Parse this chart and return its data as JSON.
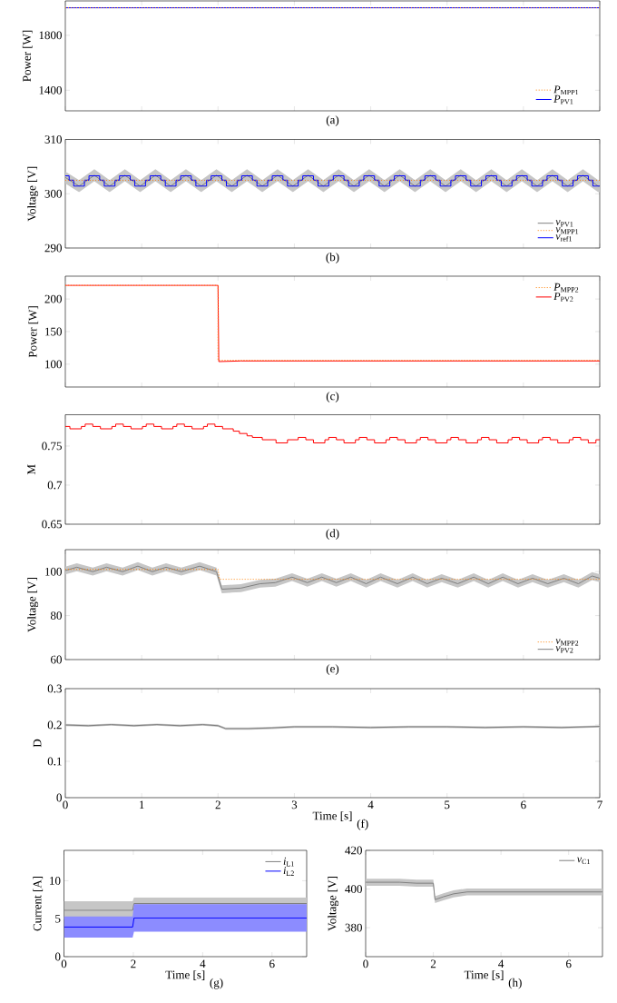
{
  "chart_data": [
    {
      "type": "line",
      "ylabel": "Power [W]",
      "xlim": [
        0,
        7
      ],
      "ylim": [
        1250,
        2050
      ],
      "xticks": [
        0,
        1,
        2,
        3,
        4,
        5,
        6,
        7
      ],
      "yticks": [
        1400,
        1800
      ],
      "tick_labels": "y",
      "legend": "bottom right",
      "annotations": [
        "(a)"
      ],
      "series": [
        {
          "name": "*P*$_{MPP1}$",
          "color": "#ff8000",
          "line_style": "dotted",
          "x": [
            0,
            7
          ],
          "values": [
            2000,
            2000
          ]
        },
        {
          "name": "*P*$_{PV1}$",
          "color": "#0000ff",
          "x": [
            0,
            7
          ],
          "values": [
            2000,
            2000
          ]
        }
      ]
    },
    {
      "type": "line",
      "ylabel": "Voltage [V]",
      "xlim": [
        0,
        7
      ],
      "ylim": [
        290,
        310
      ],
      "xticks": [
        0,
        1,
        2,
        3,
        4,
        5,
        6,
        7
      ],
      "yticks": [
        290,
        300,
        310
      ],
      "tick_labels": "y",
      "legend": "bottom right",
      "annotations": [
        "(b)"
      ],
      "series": [
        {
          "name": "*v*$_{PV1}$",
          "color": "#808080",
          "x": [
            0,
            0.18,
            0.38,
            0.58,
            0.78,
            0.98,
            1.18,
            1.38,
            1.58,
            1.78,
            1.98,
            2.18,
            2.38,
            2.58,
            2.78,
            2.98,
            3.18,
            3.38,
            3.58,
            3.78,
            3.98,
            4.18,
            4.38,
            4.58,
            4.78,
            4.98,
            5.18,
            5.38,
            5.58,
            5.78,
            5.98,
            6.18,
            6.38,
            6.58,
            6.78,
            6.98,
            7
          ],
          "values": [
            303,
            301.4,
            303.4,
            301.4,
            303.4,
            301.4,
            303.4,
            301.4,
            303.4,
            301.4,
            303.4,
            301.4,
            303.4,
            301.4,
            303.4,
            301.4,
            303.4,
            301.4,
            303.4,
            301.4,
            303.4,
            301.4,
            303.4,
            301.4,
            303.4,
            301.4,
            303.4,
            301.4,
            303.4,
            301.4,
            303.4,
            301.4,
            303.4,
            301.4,
            303.4,
            301.4,
            301.4
          ],
          "lower": [
            301.9,
            300.3,
            302.3,
            300.3,
            302.3,
            300.3,
            302.3,
            300.3,
            302.3,
            300.3,
            302.3,
            300.3,
            302.3,
            300.3,
            302.3,
            300.3,
            302.3,
            300.3,
            302.3,
            300.3,
            302.3,
            300.3,
            302.3,
            300.3,
            302.3,
            300.3,
            302.3,
            300.3,
            302.3,
            300.3,
            302.3,
            300.3,
            302.3,
            300.3,
            302.3,
            300.3,
            300.3
          ],
          "upper": [
            304.1,
            302.5,
            304.5,
            302.5,
            304.5,
            302.5,
            304.5,
            302.5,
            304.5,
            302.5,
            304.5,
            302.5,
            304.5,
            302.5,
            304.5,
            302.5,
            304.5,
            302.5,
            304.5,
            302.5,
            304.5,
            302.5,
            304.5,
            302.5,
            304.5,
            302.5,
            304.5,
            302.5,
            304.5,
            302.5,
            304.5,
            302.5,
            304.5,
            302.5,
            304.5,
            302.5,
            302.5
          ]
        },
        {
          "name": "*v*$_{MPP1}$",
          "color": "#ff8000",
          "line_style": "dotted",
          "x": [
            0,
            7
          ],
          "values": [
            302.5,
            302.5
          ]
        },
        {
          "name": "*v*$_{ref1}$",
          "color": "#0000ff",
          "type": "step",
          "x": [
            0,
            0.05,
            0.11,
            0.25,
            0.31,
            0.45,
            0.51,
            0.65,
            0.71,
            0.85,
            0.91,
            1.05,
            1.11,
            1.25,
            1.31,
            1.45,
            1.51,
            1.65,
            1.71,
            1.85,
            1.91,
            2.05,
            2.11,
            2.25,
            2.31,
            2.45,
            2.51,
            2.65,
            2.71,
            2.85,
            2.91,
            3.05,
            3.11,
            3.25,
            3.31,
            3.45,
            3.51,
            3.65,
            3.71,
            3.85,
            3.91,
            4.05,
            4.11,
            4.25,
            4.31,
            4.45,
            4.51,
            4.65,
            4.71,
            4.85,
            4.91,
            5.05,
            5.11,
            5.25,
            5.31,
            5.45,
            5.51,
            5.65,
            5.71,
            5.85,
            5.91,
            6.05,
            6.11,
            6.25,
            6.31,
            6.45,
            6.51,
            6.65,
            6.71,
            6.85,
            6.91,
            7
          ],
          "values": [
            303.3,
            302.5,
            301.4,
            302.5,
            303.3,
            302.5,
            301.4,
            302.5,
            303.3,
            302.5,
            301.4,
            302.5,
            303.3,
            302.5,
            301.4,
            302.5,
            303.3,
            302.5,
            301.4,
            302.5,
            303.3,
            302.5,
            301.4,
            302.5,
            303.3,
            302.5,
            301.4,
            302.5,
            303.3,
            302.5,
            301.4,
            302.5,
            303.3,
            302.5,
            301.4,
            302.5,
            303.3,
            302.5,
            301.4,
            302.5,
            303.3,
            302.5,
            301.4,
            302.5,
            303.3,
            302.5,
            301.4,
            302.5,
            303.3,
            302.5,
            301.4,
            302.5,
            303.3,
            302.5,
            301.4,
            302.5,
            303.3,
            302.5,
            301.4,
            302.5,
            303.3,
            302.5,
            301.4,
            302.5,
            303.3,
            302.5,
            301.4,
            302.5,
            303.3,
            302.5,
            301.4,
            301.4
          ]
        }
      ]
    },
    {
      "type": "line",
      "ylabel": "Power [W]",
      "xlim": [
        0,
        7
      ],
      "ylim": [
        65,
        235
      ],
      "xticks": [
        0,
        1,
        2,
        3,
        4,
        5,
        6,
        7
      ],
      "yticks": [
        100,
        150,
        200
      ],
      "tick_labels": "y",
      "legend": "top right",
      "annotations": [
        "(c)"
      ],
      "series": [
        {
          "name": "*P*$_{MPP2}$",
          "color": "#ff8000",
          "line_style": "dotted",
          "x": [
            0,
            2,
            2,
            7
          ],
          "values": [
            221,
            221,
            106,
            106
          ]
        },
        {
          "name": "*P*$_{PV2}$",
          "color": "#ff0000",
          "x": [
            0,
            2,
            2.01,
            2.3,
            7
          ],
          "values": [
            221,
            221,
            104,
            105,
            105
          ]
        }
      ]
    },
    {
      "type": "step",
      "ylabel": "M",
      "xlim": [
        0,
        7
      ],
      "ylim": [
        0.65,
        0.79
      ],
      "xticks": [
        0,
        1,
        2,
        3,
        4,
        5,
        6,
        7
      ],
      "yticks": [
        0.65,
        0.7,
        0.75
      ],
      "tick_labels": "y",
      "annotations": [
        "(d)"
      ],
      "series": [
        {
          "color": "#ff0000",
          "x": [
            0,
            0.06,
            0.21,
            0.26,
            0.36,
            0.46,
            0.61,
            0.66,
            0.76,
            0.86,
            1.01,
            1.06,
            1.16,
            1.26,
            1.41,
            1.46,
            1.56,
            1.66,
            1.81,
            1.86,
            1.96,
            2.06,
            2.2,
            2.28,
            2.38,
            2.45,
            2.58,
            2.76,
            2.91,
            3.05,
            3.15,
            3.25,
            3.4,
            3.45,
            3.55,
            3.65,
            3.8,
            3.85,
            3.95,
            4.05,
            4.2,
            4.25,
            4.35,
            4.45,
            4.6,
            4.65,
            4.75,
            4.85,
            5.0,
            5.05,
            5.15,
            5.25,
            5.4,
            5.45,
            5.55,
            5.65,
            5.8,
            5.85,
            5.95,
            6.05,
            6.2,
            6.25,
            6.35,
            6.45,
            6.6,
            6.65,
            6.75,
            6.85,
            6.95,
            7
          ],
          "values": [
            0.775,
            0.772,
            0.775,
            0.778,
            0.775,
            0.772,
            0.775,
            0.778,
            0.775,
            0.772,
            0.775,
            0.778,
            0.775,
            0.772,
            0.775,
            0.778,
            0.775,
            0.772,
            0.775,
            0.778,
            0.775,
            0.772,
            0.769,
            0.766,
            0.763,
            0.761,
            0.758,
            0.754,
            0.758,
            0.761,
            0.758,
            0.754,
            0.758,
            0.761,
            0.758,
            0.754,
            0.758,
            0.761,
            0.758,
            0.754,
            0.758,
            0.761,
            0.758,
            0.754,
            0.758,
            0.761,
            0.758,
            0.754,
            0.758,
            0.761,
            0.758,
            0.754,
            0.758,
            0.761,
            0.758,
            0.754,
            0.758,
            0.761,
            0.758,
            0.754,
            0.758,
            0.761,
            0.758,
            0.754,
            0.758,
            0.761,
            0.758,
            0.754,
            0.758,
            0.758
          ]
        }
      ]
    },
    {
      "type": "line",
      "ylabel": "Voltage [V]",
      "xlim": [
        0,
        7
      ],
      "ylim": [
        60,
        110
      ],
      "xticks": [
        0,
        1,
        2,
        3,
        4,
        5,
        6,
        7
      ],
      "yticks": [
        60,
        80,
        100
      ],
      "tick_labels": "y",
      "legend": "bottom right",
      "annotations": [
        "(e)"
      ],
      "series": [
        {
          "name": "*v*$_{MPP2}$",
          "color": "#ff8000",
          "line_style": "dotted",
          "x": [
            0,
            2,
            2.02,
            7
          ],
          "values": [
            101,
            101,
            96.5,
            96.5
          ]
        },
        {
          "name": "*v*$_{PV2}$",
          "color": "#808080",
          "x": [
            0,
            0.15,
            0.36,
            0.54,
            0.75,
            0.95,
            1.14,
            1.32,
            1.52,
            1.76,
            1.98,
            2.05,
            2.3,
            2.55,
            2.75,
            2.97,
            3.17,
            3.36,
            3.55,
            3.74,
            3.94,
            4.13,
            4.35,
            4.55,
            4.74,
            4.93,
            5.14,
            5.35,
            5.54,
            5.73,
            5.93,
            6.12,
            6.32,
            6.53,
            6.72,
            6.9,
            7
          ],
          "values": [
            100.5,
            102,
            100,
            102,
            100,
            102.5,
            100,
            102,
            100,
            102.5,
            100,
            92,
            92.5,
            94.5,
            95,
            97.5,
            95,
            97.5,
            95,
            97.5,
            94.5,
            97.5,
            94.5,
            97.5,
            94.5,
            97,
            94.5,
            97.5,
            94.5,
            97.5,
            94.5,
            97,
            94.5,
            97,
            94.5,
            98,
            97
          ],
          "lower": [
            98.7,
            100.2,
            98.2,
            100.2,
            98.2,
            100.7,
            98.2,
            100.2,
            98.2,
            100.7,
            98.2,
            90.2,
            90.7,
            92.7,
            93.2,
            95.7,
            93.2,
            95.7,
            93.2,
            95.7,
            92.7,
            95.7,
            92.7,
            95.7,
            92.7,
            95.2,
            92.7,
            95.7,
            92.7,
            95.7,
            92.7,
            95.2,
            92.7,
            95.2,
            92.7,
            96.2,
            95.2
          ],
          "upper": [
            102.3,
            103.8,
            101.8,
            103.8,
            101.8,
            104.3,
            101.8,
            103.8,
            101.8,
            104.3,
            101.8,
            93.8,
            94.3,
            96.3,
            96.8,
            99.3,
            96.8,
            99.3,
            96.8,
            99.3,
            96.3,
            99.3,
            96.3,
            99.3,
            96.3,
            98.8,
            96.3,
            99.3,
            96.3,
            99.3,
            96.3,
            98.8,
            96.3,
            98.8,
            96.3,
            99.8,
            98.8
          ]
        }
      ]
    },
    {
      "type": "line",
      "xlabel": "Time [s]",
      "ylabel": "D",
      "xlim": [
        0,
        7
      ],
      "ylim": [
        0,
        0.3
      ],
      "xticks": [
        0,
        1,
        2,
        3,
        4,
        5,
        6,
        7
      ],
      "yticks": [
        0,
        0.1,
        0.2,
        0.3
      ],
      "annotations": [
        "(f)"
      ],
      "series": [
        {
          "color": "#808080",
          "x": [
            0,
            0.3,
            0.6,
            0.9,
            1.2,
            1.5,
            1.8,
            2.0,
            2.1,
            2.4,
            2.7,
            3.0,
            3.5,
            4.0,
            4.5,
            5.0,
            5.5,
            6.0,
            6.5,
            7.0
          ],
          "values": [
            0.2,
            0.198,
            0.201,
            0.198,
            0.201,
            0.198,
            0.201,
            0.198,
            0.19,
            0.19,
            0.192,
            0.195,
            0.195,
            0.193,
            0.195,
            0.195,
            0.193,
            0.195,
            0.193,
            0.196
          ],
          "lower": [
            0.197,
            0.195,
            0.198,
            0.195,
            0.198,
            0.195,
            0.198,
            0.195,
            0.187,
            0.187,
            0.189,
            0.192,
            0.192,
            0.19,
            0.192,
            0.192,
            0.19,
            0.192,
            0.19,
            0.193
          ],
          "upper": [
            0.203,
            0.201,
            0.204,
            0.201,
            0.204,
            0.201,
            0.204,
            0.201,
            0.193,
            0.193,
            0.195,
            0.198,
            0.198,
            0.196,
            0.198,
            0.198,
            0.196,
            0.198,
            0.196,
            0.199
          ]
        }
      ]
    },
    {
      "type": "line",
      "xlabel": "Time [s]",
      "ylabel": "Current [A]",
      "xlim": [
        0,
        7
      ],
      "ylim": [
        0,
        14
      ],
      "xticks": [
        0,
        2,
        4,
        6
      ],
      "yticks": [
        0,
        5,
        10
      ],
      "legend": "top right",
      "annotations": [
        "(g)"
      ],
      "series": [
        {
          "name": "*i*$_{L1}$",
          "color": "#808080",
          "x": [
            0,
            1,
            1.98,
            2.02,
            3,
            4,
            5,
            6,
            7
          ],
          "values": [
            6.1,
            6.1,
            6.1,
            7,
            7,
            7,
            7,
            7,
            7
          ],
          "lower": [
            4.9,
            4.9,
            4.9,
            6.2,
            6.2,
            6.2,
            6.2,
            6.2,
            6.2
          ],
          "upper": [
            7.3,
            7.3,
            7.3,
            7.8,
            7.8,
            7.8,
            7.8,
            7.8,
            7.8
          ]
        },
        {
          "name": "*i*$_{L2}$",
          "color": "#0000ff",
          "x": [
            0,
            1,
            1.98,
            2.02,
            3,
            4,
            5,
            6,
            7
          ],
          "values": [
            3.9,
            3.9,
            3.9,
            5.1,
            5.1,
            5.1,
            5.1,
            5.1,
            5.1
          ],
          "lower": [
            2.5,
            2.5,
            2.5,
            3.3,
            3.3,
            3.3,
            3.3,
            3.3,
            3.3
          ],
          "upper": [
            5.3,
            5.3,
            5.3,
            6.9,
            6.9,
            6.9,
            6.9,
            6.9,
            6.9
          ]
        }
      ]
    },
    {
      "type": "line",
      "xlabel": "Time [s]",
      "ylabel": "Voltage [V]",
      "xlim": [
        0,
        7
      ],
      "ylim": [
        365,
        420
      ],
      "xticks": [
        0,
        2,
        4,
        6
      ],
      "yticks": [
        380,
        400,
        420
      ],
      "legend": "top right",
      "annotations": [
        "(h)"
      ],
      "series": [
        {
          "name": "*v*$_{C1}$",
          "color": "#808080",
          "x": [
            0,
            0.5,
            1,
            1.5,
            2,
            2.05,
            2.3,
            2.6,
            3,
            4,
            5,
            6,
            7
          ],
          "values": [
            403.5,
            403.5,
            403.5,
            403,
            403,
            394.5,
            396,
            397.5,
            398.5,
            398.5,
            398.5,
            398.5,
            398.5
          ],
          "lower": [
            401.7,
            401.7,
            401.7,
            401.2,
            401.2,
            392.7,
            394.2,
            395.7,
            396.7,
            396.7,
            396.7,
            396.7,
            396.7
          ],
          "upper": [
            405.3,
            405.3,
            405.3,
            404.8,
            404.8,
            396.3,
            397.8,
            399.3,
            400.3,
            400.3,
            400.3,
            400.3,
            400.3
          ]
        }
      ]
    }
  ]
}
